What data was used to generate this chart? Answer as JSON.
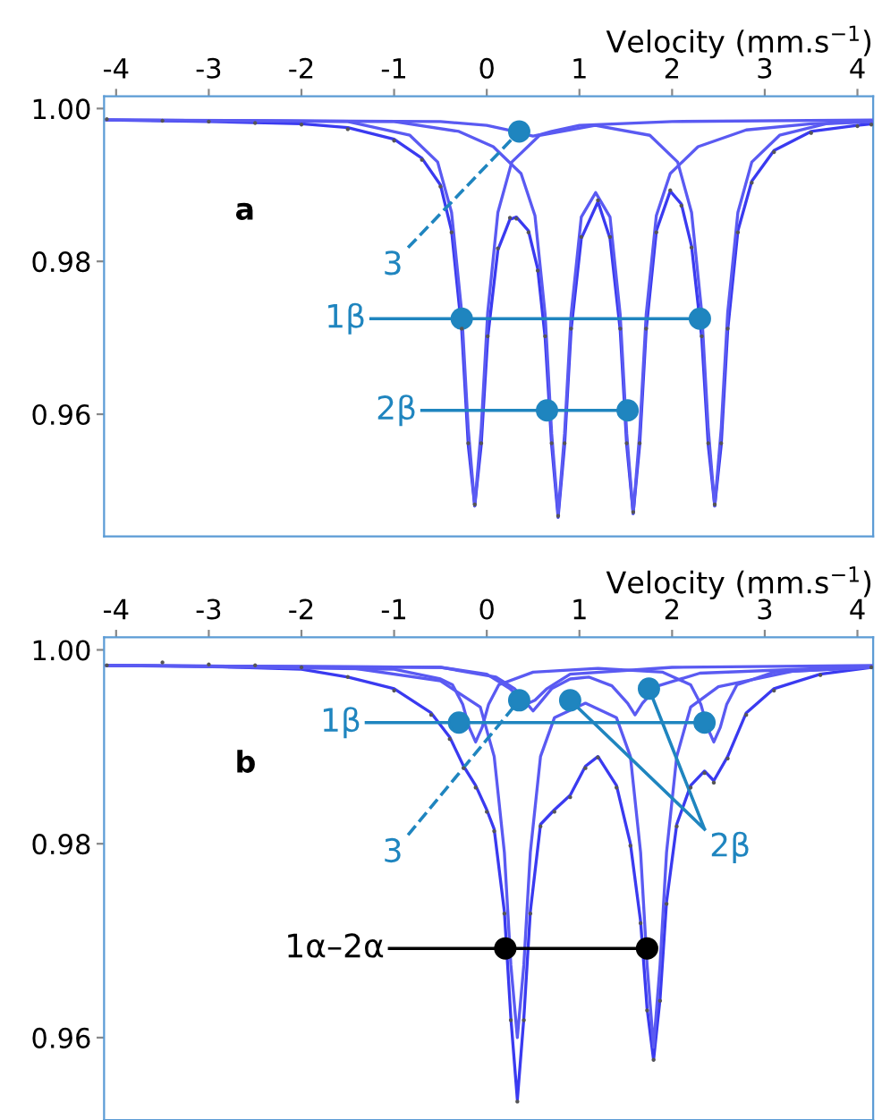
{
  "chart_data": [
    {
      "type": "line",
      "xlabel": "Velocity (mm.s$^{−1}$)",
      "xlim": [
        -4.13,
        4.17
      ],
      "ylim": [
        0.944,
        1.0016
      ],
      "xticks": [
        -4,
        -3,
        -2,
        -1,
        0,
        1,
        2,
        3,
        4
      ],
      "yticks": [
        {
          "value": 1.0,
          "label": "1.00"
        },
        {
          "value": 0.98,
          "label": "0.98"
        },
        {
          "value": 0.96,
          "label": "0.96"
        }
      ],
      "grid": false,
      "legend": false,
      "annotations": [
        "a"
      ],
      "series": [
        {
          "type": "scatter",
          "color": "#555555",
          "x": [
            -4.1,
            -3.5,
            -3,
            -2.5,
            -2,
            -1.5,
            -1,
            -0.7,
            -0.5,
            -0.38,
            -0.27,
            -0.2,
            -0.13,
            -0.06,
            0.01,
            0.12,
            0.25,
            0.32,
            0.45,
            0.55,
            0.63,
            0.7,
            0.77,
            0.84,
            0.91,
            1.02,
            1.2,
            1.33,
            1.44,
            1.51,
            1.58,
            1.65,
            1.72,
            1.83,
            1.98,
            2.1,
            2.21,
            2.32,
            2.39,
            2.46,
            2.53,
            2.6,
            2.71,
            2.86,
            3.1,
            3.5,
            4.0,
            4.15
          ],
          "values": [
            0.9986,
            0.9984,
            0.9983,
            0.9981,
            0.9979,
            0.9973,
            0.9958,
            0.9933,
            0.9898,
            0.9838,
            0.9712,
            0.9562,
            0.9482,
            0.9562,
            0.9702,
            0.9817,
            0.9857,
            0.9856,
            0.9838,
            0.9788,
            0.9702,
            0.9562,
            0.9467,
            0.9562,
            0.9712,
            0.9832,
            0.988,
            0.9832,
            0.9712,
            0.9562,
            0.9472,
            0.9562,
            0.9712,
            0.9838,
            0.9893,
            0.9873,
            0.9818,
            0.9702,
            0.9562,
            0.9482,
            0.9562,
            0.9712,
            0.9838,
            0.9903,
            0.9943,
            0.9968,
            0.9977,
            0.9979
          ]
        },
        {
          "color": "#3a3af0",
          "x": [
            -4.1,
            -3,
            -2,
            -1.5,
            -1,
            -0.7,
            -0.5,
            -0.38,
            -0.27,
            -0.2,
            -0.13,
            -0.06,
            0.01,
            0.12,
            0.25,
            0.32,
            0.45,
            0.55,
            0.63,
            0.7,
            0.77,
            0.84,
            0.91,
            1.02,
            1.2,
            1.33,
            1.44,
            1.51,
            1.58,
            1.65,
            1.72,
            1.83,
            1.98,
            2.1,
            2.21,
            2.32,
            2.39,
            2.46,
            2.53,
            2.6,
            2.71,
            2.86,
            3.1,
            3.5,
            4.0,
            4.15
          ],
          "values": [
            0.9985,
            0.9983,
            0.998,
            0.9975,
            0.996,
            0.9935,
            0.99,
            0.984,
            0.971,
            0.956,
            0.948,
            0.956,
            0.97,
            0.9815,
            0.9855,
            0.9858,
            0.984,
            0.979,
            0.97,
            0.956,
            0.9465,
            0.956,
            0.971,
            0.983,
            0.9878,
            0.983,
            0.971,
            0.956,
            0.947,
            0.956,
            0.971,
            0.984,
            0.9892,
            0.9875,
            0.982,
            0.97,
            0.956,
            0.948,
            0.956,
            0.971,
            0.984,
            0.9905,
            0.9945,
            0.997,
            0.9978,
            0.998
          ]
        },
        {
          "color": "#5a5af2",
          "x": [
            -4.1,
            -1.5,
            -0.83,
            -0.53,
            -0.38,
            -0.27,
            -0.2,
            -0.13,
            -0.06,
            0.01,
            0.12,
            0.27,
            0.57,
            1.17,
            1.76,
            2.06,
            2.21,
            2.32,
            2.39,
            2.46,
            2.53,
            2.6,
            2.71,
            2.86,
            3.16,
            3.66,
            4.15
          ],
          "values": [
            0.9985,
            0.9983,
            0.9965,
            0.993,
            0.9864,
            0.9733,
            0.9581,
            0.948,
            0.9581,
            0.9733,
            0.9864,
            0.993,
            0.9965,
            0.9978,
            0.9965,
            0.993,
            0.9864,
            0.9733,
            0.9581,
            0.948,
            0.9581,
            0.9733,
            0.9864,
            0.993,
            0.9965,
            0.998,
            0.9983
          ]
        },
        {
          "color": "#5a5af2",
          "x": [
            -4.1,
            -1,
            -0.3,
            0.07,
            0.37,
            0.52,
            0.63,
            0.7,
            0.77,
            0.84,
            0.91,
            1.02,
            1.175,
            1.33,
            1.44,
            1.51,
            1.58,
            1.65,
            1.72,
            1.83,
            1.98,
            2.28,
            2.8,
            3.5,
            4.15
          ],
          "values": [
            0.9985,
            0.9983,
            0.997,
            0.995,
            0.9915,
            0.986,
            0.973,
            0.9575,
            0.947,
            0.9575,
            0.973,
            0.9858,
            0.989,
            0.9858,
            0.973,
            0.9575,
            0.947,
            0.9575,
            0.973,
            0.986,
            0.9915,
            0.995,
            0.9972,
            0.998,
            0.9983
          ]
        },
        {
          "color": "#5a5af2",
          "x": [
            -4.1,
            -0.5,
            0,
            0.3,
            0.42,
            0.5,
            0.58,
            0.7,
            1.0,
            2.0,
            4.15
          ],
          "values": [
            0.9985,
            0.9983,
            0.9978,
            0.997,
            0.9966,
            0.9964,
            0.9966,
            0.997,
            0.9978,
            0.9983,
            0.9985
          ]
        },
        {
          "name": "3",
          "color": "#1f85bf",
          "marker": "circle",
          "line_style": "dashed",
          "x": [
            -0.85,
            0.35
          ],
          "values": [
            0.9818,
            0.997
          ]
        },
        {
          "name": "1β",
          "color": "#1f85bf",
          "marker": "circle",
          "x": [
            -1.25,
            -0.27,
            2.3
          ],
          "values": [
            0.9725,
            0.9725,
            0.9725
          ]
        },
        {
          "name": "2β",
          "color": "#1f85bf",
          "marker": "circle",
          "x": [
            -0.7,
            0.65,
            1.52
          ],
          "values": [
            0.9605,
            0.9605,
            0.9605
          ]
        }
      ]
    },
    {
      "type": "line",
      "xlabel": "Velocity (mm.s$^{−1}$)",
      "xlim": [
        -4.13,
        4.17
      ],
      "ylim": [
        0.9515,
        1.0013
      ],
      "xticks": [
        -4,
        -3,
        -2,
        -1,
        0,
        1,
        2,
        3,
        4
      ],
      "yticks": [
        {
          "value": 1.0,
          "label": "1.00"
        },
        {
          "value": 0.98,
          "label": "0.98"
        },
        {
          "value": 0.96,
          "label": "0.96"
        }
      ],
      "grid": false,
      "legend": false,
      "annotations": [
        "b"
      ],
      "series": [
        {
          "type": "scatter",
          "color": "#555555",
          "x": [
            -4.1,
            -3.5,
            -3,
            -2.5,
            -2,
            -1.5,
            -1,
            -0.6,
            -0.4,
            -0.25,
            -0.12,
            0.0,
            0.08,
            0.19,
            0.26,
            0.33,
            0.4,
            0.47,
            0.58,
            0.73,
            0.9,
            1.065,
            1.2,
            1.4,
            1.55,
            1.66,
            1.73,
            1.8,
            1.87,
            1.94,
            2.05,
            2.2,
            2.35,
            2.45,
            2.6,
            2.8,
            3.1,
            3.6,
            4.15
          ],
          "values": [
            0.9984,
            0.9987,
            0.9985,
            0.9984,
            0.9982,
            0.9972,
            0.9958,
            0.9933,
            0.9908,
            0.9878,
            0.9858,
            0.9833,
            0.9813,
            0.9728,
            0.9618,
            0.9534,
            0.9618,
            0.9728,
            0.9818,
            0.9833,
            0.9848,
            0.9878,
            0.9889,
            0.9858,
            0.9798,
            0.9718,
            0.9628,
            0.9577,
            0.9638,
            0.9738,
            0.9818,
            0.9858,
            0.9873,
            0.9863,
            0.9888,
            0.9933,
            0.9958,
            0.9974,
            0.9982
          ]
        },
        {
          "color": "#3a3af0",
          "x": [
            -4.1,
            -3,
            -2,
            -1.5,
            -1,
            -0.6,
            -0.4,
            -0.25,
            -0.12,
            0.0,
            0.08,
            0.19,
            0.26,
            0.33,
            0.4,
            0.47,
            0.58,
            0.73,
            0.9,
            1.065,
            1.2,
            1.4,
            1.55,
            1.66,
            1.73,
            1.8,
            1.87,
            1.94,
            2.05,
            2.2,
            2.35,
            2.45,
            2.6,
            2.8,
            3.1,
            3.6,
            4.15
          ],
          "values": [
            0.9984,
            0.9983,
            0.998,
            0.9972,
            0.996,
            0.9935,
            0.991,
            0.988,
            0.986,
            0.9835,
            0.9815,
            0.973,
            0.962,
            0.9536,
            0.962,
            0.973,
            0.982,
            0.9835,
            0.985,
            0.988,
            0.989,
            0.986,
            0.98,
            0.972,
            0.963,
            0.9577,
            0.964,
            0.974,
            0.982,
            0.986,
            0.9875,
            0.9865,
            0.989,
            0.9935,
            0.996,
            0.9975,
            0.9982
          ]
        },
        {
          "color": "#5a5af2",
          "x": [
            -4.1,
            -1.5,
            -0.5,
            -0.07,
            0.08,
            0.19,
            0.26,
            0.33,
            0.4,
            0.47,
            0.58,
            0.73,
            1.065,
            1.4,
            1.55,
            1.66,
            1.73,
            1.8,
            1.87,
            1.94,
            2.05,
            2.2,
            2.5,
            3.3,
            4.15
          ],
          "values": [
            0.9984,
            0.9982,
            0.9968,
            0.9941,
            0.989,
            0.9791,
            0.9675,
            0.96,
            0.9675,
            0.9791,
            0.989,
            0.993,
            0.9945,
            0.993,
            0.989,
            0.9791,
            0.9675,
            0.959,
            0.9675,
            0.9791,
            0.989,
            0.9941,
            0.9962,
            0.9978,
            0.9982
          ]
        },
        {
          "color": "#5a5af2",
          "x": [
            -4.1,
            -1,
            -0.5,
            -0.37,
            -0.26,
            -0.19,
            -0.12,
            -0.05,
            0.02,
            0.13,
            0.5,
            1.2,
            1.9,
            2.2,
            2.31,
            2.38,
            2.45,
            2.52,
            2.59,
            2.7,
            3.1,
            4.15
          ],
          "values": [
            0.9984,
            0.998,
            0.997,
            0.9964,
            0.9944,
            0.992,
            0.9905,
            0.992,
            0.9944,
            0.9964,
            0.9977,
            0.9981,
            0.9977,
            0.9964,
            0.9944,
            0.992,
            0.9905,
            0.992,
            0.9944,
            0.9964,
            0.9977,
            0.9982
          ]
        },
        {
          "color": "#5a5af2",
          "x": [
            -4.1,
            -0.5,
            0.1,
            0.3,
            0.43,
            0.5,
            0.57,
            0.7,
            0.9,
            1.1,
            1.35,
            1.52,
            1.6,
            1.68,
            1.85,
            2.3,
            4.15
          ],
          "values": [
            0.9984,
            0.9982,
            0.9972,
            0.996,
            0.9945,
            0.9937,
            0.9945,
            0.996,
            0.997,
            0.9972,
            0.9963,
            0.9945,
            0.9933,
            0.9945,
            0.9963,
            0.9976,
            0.9983
          ]
        },
        {
          "color": "#5a5af2",
          "x": [
            -4.1,
            -0.5,
            0,
            0.25,
            0.38,
            0.45,
            0.52,
            0.65,
            0.9,
            2.0,
            4.15
          ],
          "values": [
            0.9984,
            0.9982,
            0.9975,
            0.996,
            0.9948,
            0.9945,
            0.9948,
            0.996,
            0.9975,
            0.9982,
            0.9984
          ]
        },
        {
          "name": "1β",
          "color": "#1f85bf",
          "marker": "circle",
          "x": [
            -1.3,
            -0.3,
            2.35
          ],
          "values": [
            0.9925,
            0.9925,
            0.9925
          ]
        },
        {
          "name": "3",
          "color": "#1f85bf",
          "marker": "circle",
          "line_style": "dashed",
          "x": [
            -0.85,
            0.35
          ],
          "values": [
            0.9809,
            0.9948
          ]
        },
        {
          "name": "2β",
          "color": "#1f85bf",
          "marker": "circle",
          "x": [
            2.35,
            0.9,
            2.35,
            1.75
          ],
          "values": [
            0.9815,
            0.9948,
            0.9815,
            0.996
          ]
        },
        {
          "name": "1α–2α",
          "color": "#000000",
          "marker": "circle",
          "x": [
            -1.05,
            0.2,
            1.73
          ],
          "values": [
            0.9692,
            0.9692,
            0.9692
          ]
        }
      ]
    }
  ]
}
